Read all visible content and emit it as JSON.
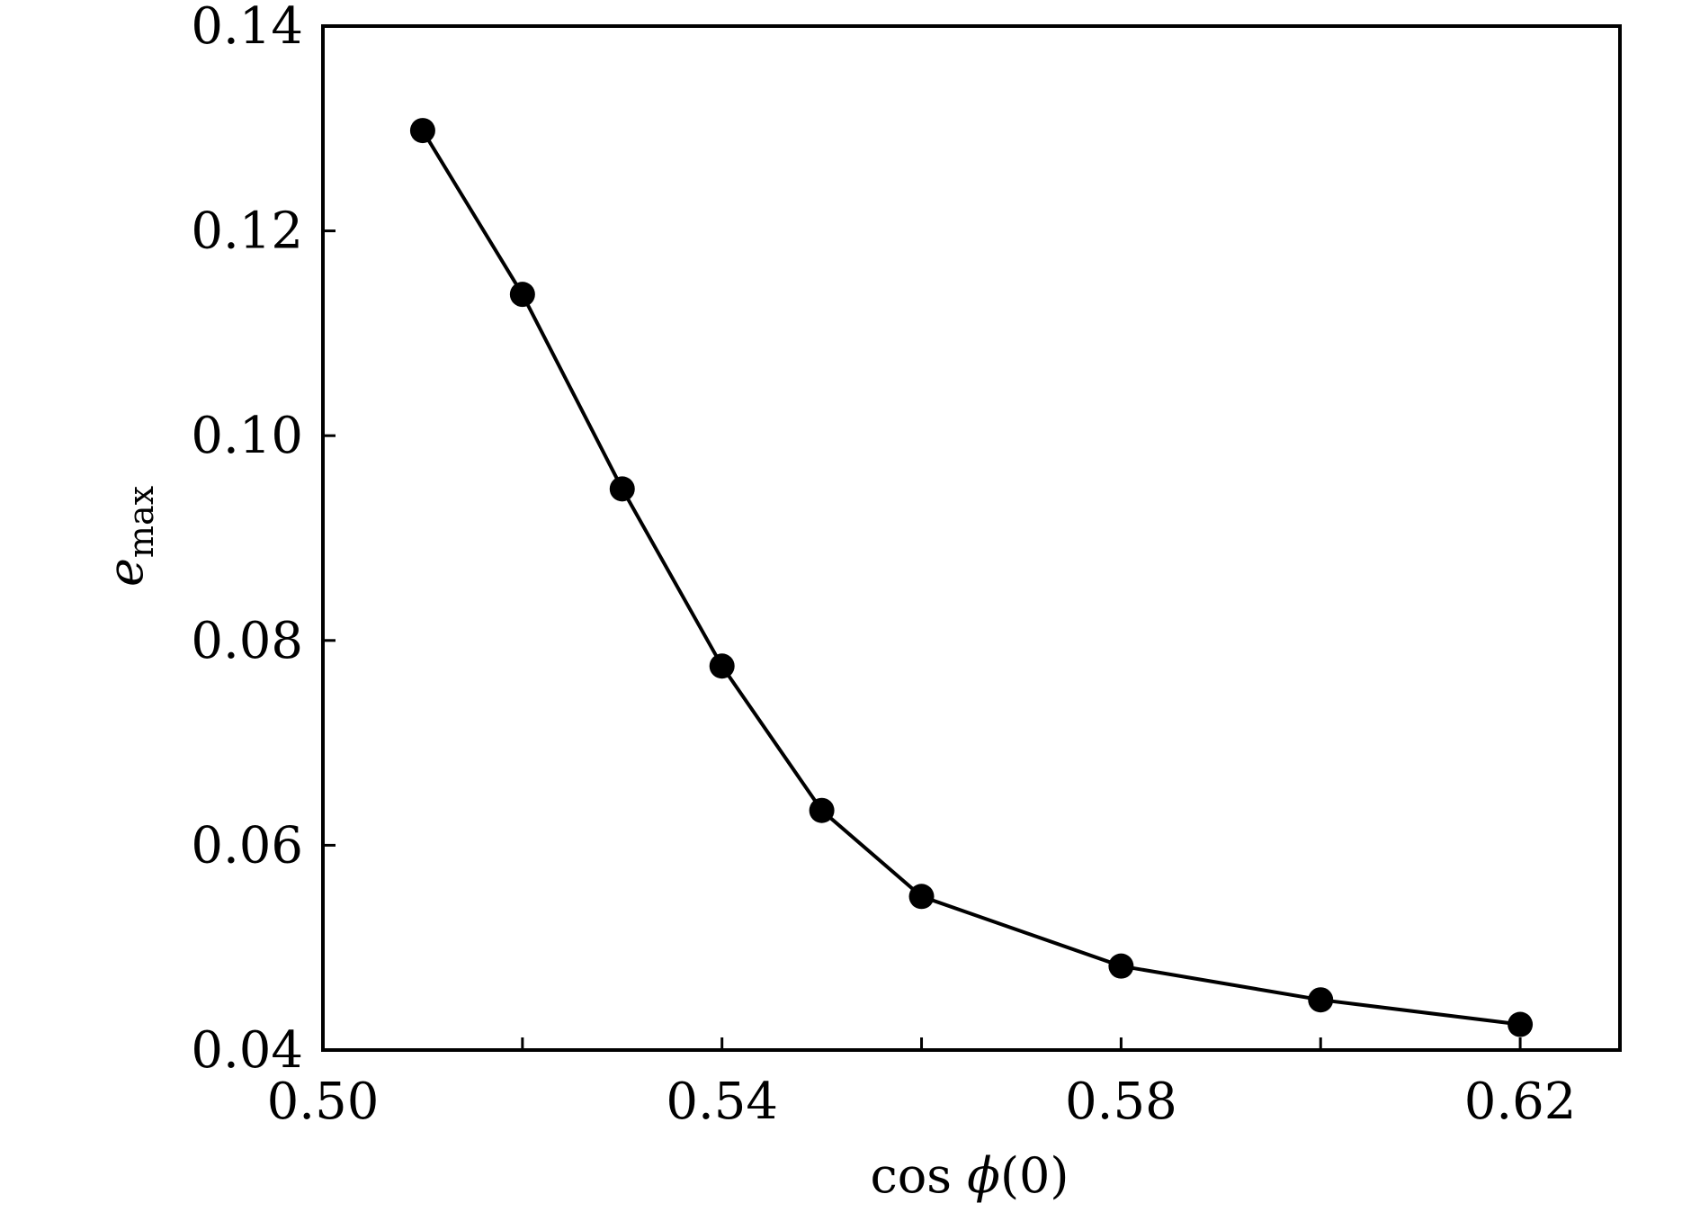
{
  "chart_data": {
    "type": "line",
    "title": "",
    "xlabel": "cos ϕ(0)",
    "ylabel": "e_max",
    "xlim": [
      0.5,
      0.63
    ],
    "ylim": [
      0.04,
      0.14
    ],
    "xticks": [
      0.5,
      0.52,
      0.54,
      0.56,
      0.58,
      0.6,
      0.62
    ],
    "xtick_labels": [
      "0.50",
      "",
      "0.54",
      "",
      "0.58",
      "",
      "0.62"
    ],
    "yticks": [
      0.04,
      0.06,
      0.08,
      0.1,
      0.12,
      0.14
    ],
    "ytick_labels": [
      "0.04",
      "0.06",
      "0.08",
      "0.10",
      "0.12",
      "0.14"
    ],
    "grid": false,
    "legend": false,
    "line_color": "#000000",
    "marker": "filled-circle",
    "series": [
      {
        "x": [
          0.51,
          0.52,
          0.53,
          0.54,
          0.55,
          0.56,
          0.58,
          0.6,
          0.62
        ],
        "y": [
          0.1298,
          0.1138,
          0.0948,
          0.0775,
          0.0634,
          0.055,
          0.0482,
          0.0449,
          0.0425
        ]
      }
    ]
  }
}
